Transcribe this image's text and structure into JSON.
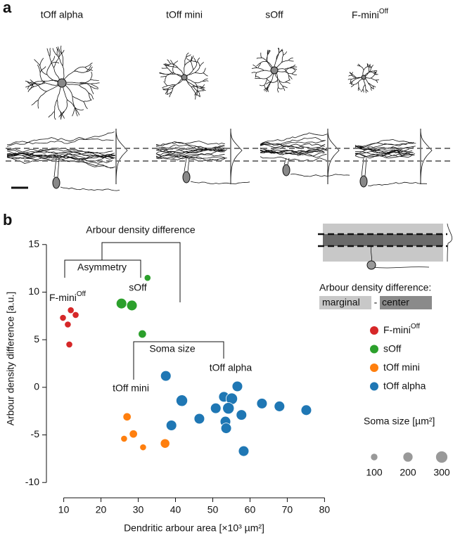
{
  "panel_a": {
    "label": "a",
    "cells": [
      {
        "name": "tOff alpha"
      },
      {
        "name": "tOff mini"
      },
      {
        "name": "sOff"
      },
      {
        "name": "F-mini",
        "name_superscript": "Off"
      }
    ]
  },
  "chart_data": {
    "type": "scatter",
    "panel_label": "b",
    "x_label": "Dendritic arbour area [×10³ µm²]",
    "y_label": "Arbour density difference [a.u.]",
    "xlim": [
      8,
      82
    ],
    "ylim": [
      -10.5,
      15.5
    ],
    "xticks": [
      10,
      20,
      30,
      40,
      50,
      60,
      70,
      80
    ],
    "yticks": [
      -10,
      -5,
      0,
      5,
      10,
      15
    ],
    "series": [
      {
        "name": "F-mini",
        "name_superscript": "Off",
        "color": "#d62728",
        "x": [
          11.9,
          9.8,
          13.2,
          11.1,
          11.5
        ],
        "y": [
          8.1,
          7.3,
          7.6,
          6.6,
          4.5
        ],
        "sizes": [
          100,
          100,
          100,
          100,
          100
        ]
      },
      {
        "name": "sOff",
        "color": "#2ca02c",
        "x": [
          25.5,
          28.3,
          32.5,
          31.1
        ],
        "y": [
          8.8,
          8.6,
          11.5,
          5.6
        ],
        "sizes": [
          250,
          250,
          100,
          150
        ]
      },
      {
        "name": "tOff mini",
        "color": "#ff7f0e",
        "x": [
          27,
          28.7,
          26.2,
          31.3,
          37.2
        ],
        "y": [
          -3.1,
          -4.9,
          -5.4,
          -6.3,
          -5.9
        ],
        "sizes": [
          150,
          150,
          100,
          100,
          200
        ]
      },
      {
        "name": "tOff alpha",
        "color": "#1f77b4",
        "x": [
          37.4,
          41.7,
          38.9,
          46.4,
          50.8,
          53,
          55.1,
          56.6,
          54.2,
          53.4,
          53.6,
          57.7,
          58.3,
          63.2,
          67.9,
          75.1
        ],
        "y": [
          1.2,
          -1.4,
          -4,
          -3.3,
          -2.2,
          -1,
          -1.2,
          0.1,
          -2.2,
          -3.6,
          -4.3,
          -2.9,
          -6.7,
          -1.7,
          -2,
          -2.4
        ],
        "sizes": [
          250,
          300,
          250,
          250,
          250,
          250,
          300,
          250,
          300,
          250,
          250,
          250,
          250,
          250,
          250,
          250
        ]
      }
    ],
    "annotations": {
      "arbour_density": "Arbour density difference",
      "asymmetry": "Asymmetry",
      "soma_size": "Soma size",
      "sOff": "sOff",
      "fmini": "F-mini",
      "fmini_sup": "Off",
      "toff_alpha": "tOff alpha",
      "toff_mini": "tOff mini"
    },
    "inset": {
      "title": "Arbour density difference:",
      "marginal": "marginal",
      "minus": "-",
      "center": "center"
    },
    "size_legend": {
      "title": "Soma size [µm²]",
      "values": [
        100,
        200,
        300
      ]
    }
  }
}
